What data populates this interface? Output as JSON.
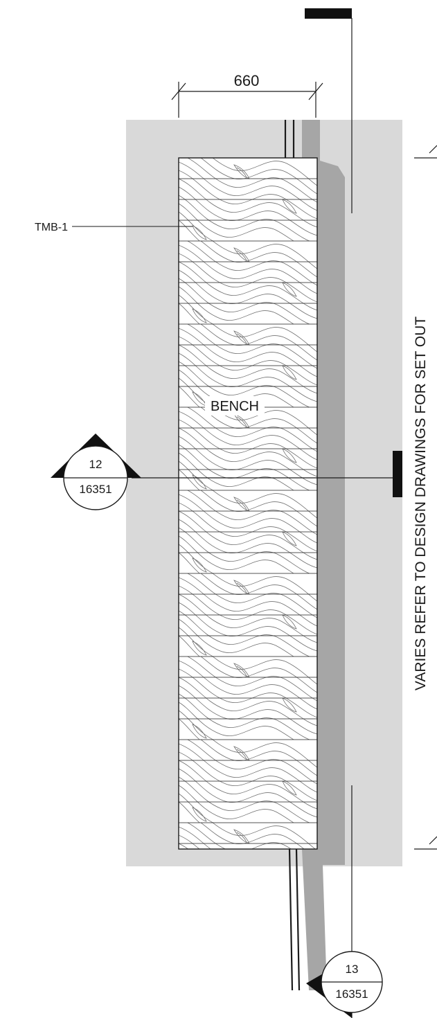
{
  "dimension": {
    "value": "660"
  },
  "material_tag": {
    "label": "TMB-1"
  },
  "element_label": {
    "text": "BENCH"
  },
  "section_marker_left": {
    "section": "12",
    "sheet": "16351"
  },
  "section_marker_bottom": {
    "section": "13",
    "sheet": "16351"
  },
  "set_out_note": {
    "text": "VARIES REFER TO DESIGN DRAWINGS FOR SET OUT"
  },
  "colors": {
    "background_slab": "#d9d9d9",
    "wall": "#a6a6a6",
    "linework": "#1a1a1a",
    "timber_grain": "#6e6e6e"
  }
}
